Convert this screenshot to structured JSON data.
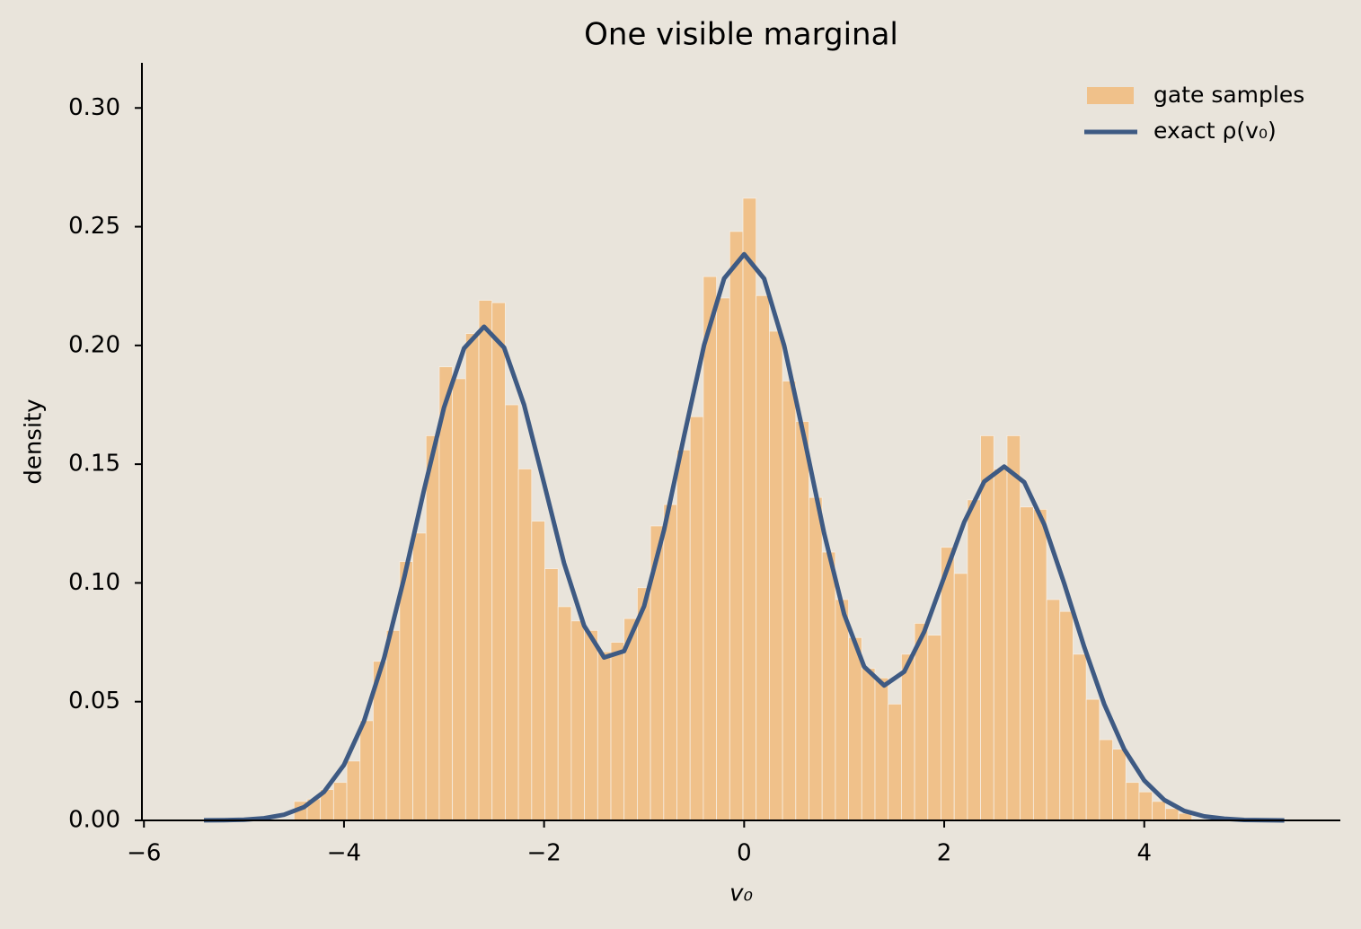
{
  "chart_data": {
    "type": "histogram_line",
    "title": "One visible marginal",
    "xlabel": "v₀",
    "ylabel": "density",
    "xlim": [
      -6.02,
      5.96
    ],
    "ylim": [
      0,
      0.319
    ],
    "xticks": [
      {
        "value": -6,
        "label": "−6"
      },
      {
        "value": -4,
        "label": "−4"
      },
      {
        "value": -2,
        "label": "−2"
      },
      0,
      2,
      4
    ],
    "yticks": [
      {
        "value": 0,
        "label": "0.00"
      },
      {
        "value": 0.05,
        "label": "0.05"
      },
      {
        "value": 0.1,
        "label": "0.10"
      },
      {
        "value": 0.15,
        "label": "0.15"
      },
      {
        "value": 0.2,
        "label": "0.20"
      },
      {
        "value": 0.25,
        "label": "0.25"
      },
      {
        "value": 0.3,
        "label": "0.30"
      }
    ],
    "legend": "upper right",
    "histogram": {
      "name": "gate samples",
      "color": "#f0c18a",
      "bins": [
        -4.5,
        -4.368,
        -4.236,
        -4.104,
        -3.972,
        -3.84,
        -3.708,
        -3.576,
        -3.444,
        -3.312,
        -3.18,
        -3.048,
        -2.916,
        -2.784,
        -2.652,
        -2.52,
        -2.388,
        -2.256,
        -2.124,
        -1.992,
        -1.86,
        -1.728,
        -1.596,
        -1.464,
        -1.332,
        -1.2,
        -1.068,
        -0.936,
        -0.804,
        -0.672,
        -0.54,
        -0.408,
        -0.276,
        -0.144,
        -0.012,
        0.12,
        0.252,
        0.384,
        0.516,
        0.648,
        0.78,
        0.912,
        1.044,
        1.176,
        1.308,
        1.44,
        1.572,
        1.704,
        1.836,
        1.968,
        2.1,
        2.232,
        2.364,
        2.496,
        2.628,
        2.76,
        2.892,
        3.024,
        3.156,
        3.288,
        3.42,
        3.552,
        3.684,
        3.816,
        3.948,
        4.08,
        4.212,
        4.344,
        4.476
      ],
      "values": [
        0.008,
        0.009,
        0.013,
        0.016,
        0.025,
        0.042,
        0.067,
        0.08,
        0.109,
        0.121,
        0.162,
        0.191,
        0.186,
        0.205,
        0.219,
        0.218,
        0.175,
        0.148,
        0.126,
        0.106,
        0.09,
        0.084,
        0.08,
        0.071,
        0.075,
        0.085,
        0.098,
        0.124,
        0.133,
        0.156,
        0.17,
        0.229,
        0.22,
        0.248,
        0.262,
        0.221,
        0.206,
        0.185,
        0.168,
        0.136,
        0.113,
        0.093,
        0.077,
        0.064,
        0.06,
        0.049,
        0.07,
        0.083,
        0.078,
        0.115,
        0.104,
        0.135,
        0.162,
        0.148,
        0.162,
        0.132,
        0.131,
        0.093,
        0.088,
        0.07,
        0.051,
        0.034,
        0.03,
        0.016,
        0.012,
        0.008,
        0.005,
        0.003
      ]
    },
    "line": {
      "name": "exact ρ(v₀)",
      "color": "#3e5a83",
      "x": [
        -5.4,
        -5.2,
        -5.0,
        -4.8,
        -4.6,
        -4.4,
        -4.2,
        -4.0,
        -3.8,
        -3.6,
        -3.4,
        -3.2,
        -3.0,
        -2.8,
        -2.6,
        -2.4,
        -2.2,
        -2.0,
        -1.8,
        -1.6,
        -1.4,
        -1.2,
        -1.0,
        -0.8,
        -0.6,
        -0.4,
        -0.2,
        0,
        0.2,
        0.4,
        0.6,
        0.8,
        1.0,
        1.2,
        1.4,
        1.6,
        1.8,
        2.0,
        2.2,
        2.4,
        2.6,
        2.8,
        3.0,
        3.2,
        3.4,
        3.6,
        3.8,
        4.0,
        4.2,
        4.4,
        4.6,
        4.8,
        5.0,
        5.2,
        5.4
      ],
      "values": [
        3e-05,
        0.0001,
        0.0003,
        0.0009,
        0.0024,
        0.0056,
        0.012,
        0.0234,
        0.0418,
        0.0682,
        0.1019,
        0.1391,
        0.1739,
        0.1988,
        0.2079,
        0.1991,
        0.175,
        0.1419,
        0.1083,
        0.082,
        0.0686,
        0.0713,
        0.0902,
        0.1224,
        0.1619,
        0.2002,
        0.2282,
        0.2384,
        0.2281,
        0.2,
        0.1612,
        0.1208,
        0.0868,
        0.0647,
        0.0568,
        0.0626,
        0.0794,
        0.1025,
        0.1256,
        0.1427,
        0.149,
        0.1424,
        0.1246,
        0.0997,
        0.073,
        0.0489,
        0.0299,
        0.0168,
        0.0086,
        0.004,
        0.0017,
        0.0007,
        0.0002,
        0.0001,
        2e-05
      ]
    }
  }
}
